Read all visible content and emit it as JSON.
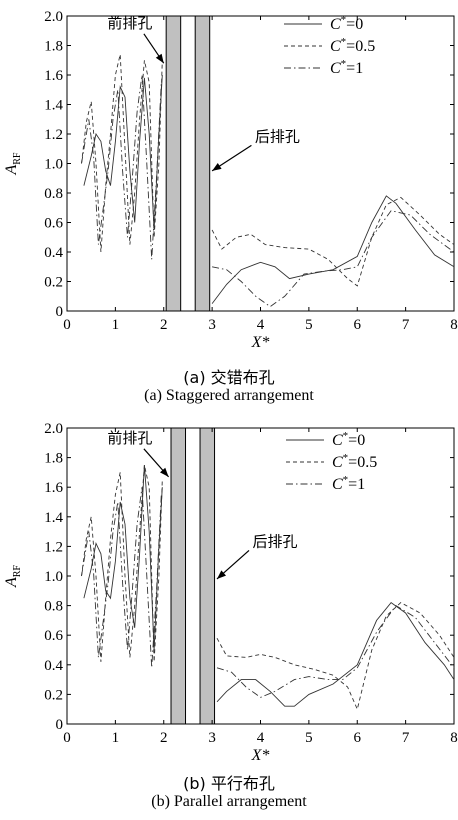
{
  "chart_data": [
    {
      "type": "line",
      "caption_cn": "(a) 交错布孔",
      "caption_en": "(a) Staggered arrangement",
      "xlabel": "X*",
      "ylabel_main": "A",
      "ylabel_sub": "RF",
      "xlim": [
        0,
        8
      ],
      "ylim": [
        0,
        2.0
      ],
      "xticks": [
        "0",
        "1",
        "2",
        "3",
        "4",
        "5",
        "6",
        "7",
        "8"
      ],
      "yticks": [
        "0",
        "0.2",
        "0.4",
        "0.6",
        "0.8",
        "1.0",
        "1.2",
        "1.4",
        "1.6",
        "1.8",
        "2.0"
      ],
      "grid": false,
      "legend_position": "top-right",
      "legend": [
        {
          "name_pre": "C",
          "name_sup": "*",
          "name_post": "=0",
          "style": "solid"
        },
        {
          "name_pre": "C",
          "name_sup": "*",
          "name_post": "=0.5",
          "style": "dashed"
        },
        {
          "name_pre": "C",
          "name_sup": "*",
          "name_post": "=1",
          "style": "dashdot"
        }
      ],
      "holes": [
        [
          2.05,
          2.35
        ],
        [
          2.65,
          2.95
        ]
      ],
      "annotations": [
        {
          "text": "前排孔",
          "text_x": 1.3,
          "text_y": 1.92,
          "arrow_to": [
            2.0,
            1.68
          ]
        },
        {
          "text": "后排孔",
          "text_x": 4.35,
          "text_y": 1.15,
          "arrow_to": [
            3.0,
            0.95
          ]
        }
      ],
      "series": [
        {
          "style": "solid",
          "points": [
            [
              0.35,
              0.85
            ],
            [
              0.5,
              1.05
            ],
            [
              0.6,
              1.2
            ],
            [
              0.7,
              1.15
            ],
            [
              0.8,
              0.95
            ],
            [
              0.9,
              0.85
            ],
            [
              1.0,
              1.15
            ],
            [
              1.1,
              1.52
            ],
            [
              1.2,
              1.45
            ],
            [
              1.3,
              0.95
            ],
            [
              1.4,
              0.6
            ],
            [
              1.5,
              1.15
            ],
            [
              1.6,
              1.58
            ],
            [
              1.7,
              1.2
            ],
            [
              1.8,
              0.55
            ],
            [
              1.9,
              1.2
            ],
            [
              1.97,
              1.6
            ]
          ]
        },
        {
          "style": "dashed",
          "points": [
            [
              0.3,
              1.0
            ],
            [
              0.4,
              1.28
            ],
            [
              0.5,
              1.42
            ],
            [
              0.6,
              1.0
            ],
            [
              0.7,
              0.4
            ],
            [
              0.8,
              0.85
            ],
            [
              0.9,
              1.2
            ],
            [
              1.0,
              1.6
            ],
            [
              1.1,
              1.74
            ],
            [
              1.2,
              1.1
            ],
            [
              1.3,
              0.45
            ],
            [
              1.4,
              0.8
            ],
            [
              1.5,
              1.3
            ],
            [
              1.6,
              1.7
            ],
            [
              1.7,
              1.55
            ],
            [
              1.8,
              0.5
            ],
            [
              1.9,
              1.0
            ],
            [
              1.97,
              1.7
            ]
          ]
        },
        {
          "style": "dashdot",
          "points": [
            [
              0.3,
              1.0
            ],
            [
              0.45,
              1.3
            ],
            [
              0.55,
              1.05
            ],
            [
              0.65,
              0.45
            ],
            [
              0.75,
              0.7
            ],
            [
              0.85,
              0.95
            ],
            [
              0.95,
              1.3
            ],
            [
              1.05,
              1.5
            ],
            [
              1.15,
              0.95
            ],
            [
              1.25,
              0.5
            ],
            [
              1.35,
              0.9
            ],
            [
              1.45,
              1.35
            ],
            [
              1.55,
              1.6
            ],
            [
              1.65,
              1.0
            ],
            [
              1.75,
              0.35
            ],
            [
              1.85,
              0.9
            ],
            [
              1.95,
              1.55
            ]
          ]
        },
        {
          "style": "solid",
          "points": [
            [
              3.0,
              0.05
            ],
            [
              3.3,
              0.18
            ],
            [
              3.6,
              0.28
            ],
            [
              4.0,
              0.33
            ],
            [
              4.3,
              0.3
            ],
            [
              4.6,
              0.22
            ],
            [
              5.0,
              0.25
            ],
            [
              5.5,
              0.28
            ],
            [
              6.0,
              0.37
            ],
            [
              6.3,
              0.6
            ],
            [
              6.6,
              0.78
            ],
            [
              6.8,
              0.73
            ],
            [
              7.2,
              0.55
            ],
            [
              7.6,
              0.38
            ],
            [
              8.0,
              0.3
            ]
          ]
        },
        {
          "style": "dashed",
          "points": [
            [
              3.0,
              0.55
            ],
            [
              3.2,
              0.42
            ],
            [
              3.5,
              0.5
            ],
            [
              3.8,
              0.52
            ],
            [
              4.1,
              0.45
            ],
            [
              4.5,
              0.43
            ],
            [
              5.0,
              0.42
            ],
            [
              5.4,
              0.35
            ],
            [
              5.8,
              0.22
            ],
            [
              6.0,
              0.17
            ],
            [
              6.3,
              0.5
            ],
            [
              6.6,
              0.72
            ],
            [
              6.9,
              0.77
            ],
            [
              7.3,
              0.65
            ],
            [
              7.7,
              0.52
            ],
            [
              8.0,
              0.45
            ]
          ]
        },
        {
          "style": "dashdot",
          "points": [
            [
              3.0,
              0.3
            ],
            [
              3.3,
              0.28
            ],
            [
              3.6,
              0.2
            ],
            [
              3.9,
              0.1
            ],
            [
              4.2,
              0.03
            ],
            [
              4.5,
              0.1
            ],
            [
              4.9,
              0.25
            ],
            [
              5.3,
              0.27
            ],
            [
              5.7,
              0.28
            ],
            [
              6.0,
              0.3
            ],
            [
              6.3,
              0.5
            ],
            [
              6.7,
              0.68
            ],
            [
              7.1,
              0.65
            ],
            [
              7.5,
              0.52
            ],
            [
              8.0,
              0.4
            ]
          ]
        }
      ]
    },
    {
      "type": "line",
      "caption_cn": "(b) 平行布孔",
      "caption_en": "(b) Parallel arrangement",
      "xlabel": "X*",
      "ylabel_main": "A",
      "ylabel_sub": "RF",
      "xlim": [
        0,
        8
      ],
      "ylim": [
        0,
        2.0
      ],
      "xticks": [
        "0",
        "1",
        "2",
        "3",
        "4",
        "5",
        "6",
        "7",
        "8"
      ],
      "yticks": [
        "0",
        "0.2",
        "0.4",
        "0.6",
        "0.8",
        "1.0",
        "1.2",
        "1.4",
        "1.6",
        "1.8",
        "2.0"
      ],
      "grid": false,
      "legend_position": "top-right",
      "legend": [
        {
          "name_pre": "C",
          "name_sup": "*",
          "name_post": "=0",
          "style": "solid"
        },
        {
          "name_pre": "C",
          "name_sup": "*",
          "name_post": "=0.5",
          "style": "dashed"
        },
        {
          "name_pre": "C",
          "name_sup": "*",
          "name_post": "=1",
          "style": "dashdot"
        }
      ],
      "holes": [
        [
          2.15,
          2.45
        ],
        [
          2.75,
          3.05
        ]
      ],
      "annotations": [
        {
          "text": "前排孔",
          "text_x": 1.3,
          "text_y": 1.9,
          "arrow_to": [
            2.1,
            1.67
          ]
        },
        {
          "text": "后排孔",
          "text_x": 4.3,
          "text_y": 1.2,
          "arrow_to": [
            3.1,
            0.98
          ]
        }
      ],
      "series": [
        {
          "style": "solid",
          "points": [
            [
              0.35,
              0.85
            ],
            [
              0.5,
              1.05
            ],
            [
              0.6,
              1.22
            ],
            [
              0.7,
              1.15
            ],
            [
              0.8,
              0.9
            ],
            [
              0.9,
              0.85
            ],
            [
              1.0,
              1.1
            ],
            [
              1.1,
              1.5
            ],
            [
              1.2,
              1.35
            ],
            [
              1.3,
              0.85
            ],
            [
              1.4,
              0.65
            ],
            [
              1.5,
              1.15
            ],
            [
              1.6,
              1.75
            ],
            [
              1.7,
              1.3
            ],
            [
              1.8,
              0.5
            ],
            [
              1.9,
              1.2
            ],
            [
              1.97,
              1.6
            ]
          ]
        },
        {
          "style": "dashed",
          "points": [
            [
              0.3,
              1.0
            ],
            [
              0.4,
              1.25
            ],
            [
              0.5,
              1.4
            ],
            [
              0.6,
              1.0
            ],
            [
              0.7,
              0.42
            ],
            [
              0.8,
              0.85
            ],
            [
              0.9,
              1.25
            ],
            [
              1.0,
              1.55
            ],
            [
              1.1,
              1.7
            ],
            [
              1.2,
              1.0
            ],
            [
              1.3,
              0.45
            ],
            [
              1.4,
              0.8
            ],
            [
              1.5,
              1.3
            ],
            [
              1.6,
              1.75
            ],
            [
              1.7,
              1.6
            ],
            [
              1.8,
              0.42
            ],
            [
              1.9,
              1.0
            ],
            [
              1.97,
              1.65
            ]
          ]
        },
        {
          "style": "dashdot",
          "points": [
            [
              0.3,
              1.0
            ],
            [
              0.45,
              1.3
            ],
            [
              0.55,
              1.02
            ],
            [
              0.65,
              0.45
            ],
            [
              0.75,
              0.7
            ],
            [
              0.85,
              0.95
            ],
            [
              0.95,
              1.3
            ],
            [
              1.05,
              1.5
            ],
            [
              1.15,
              0.95
            ],
            [
              1.25,
              0.5
            ],
            [
              1.35,
              0.9
            ],
            [
              1.45,
              1.35
            ],
            [
              1.55,
              1.6
            ],
            [
              1.65,
              1.0
            ],
            [
              1.75,
              0.38
            ],
            [
              1.85,
              0.9
            ],
            [
              1.95,
              1.55
            ]
          ]
        },
        {
          "style": "solid",
          "points": [
            [
              3.1,
              0.15
            ],
            [
              3.3,
              0.22
            ],
            [
              3.6,
              0.3
            ],
            [
              3.9,
              0.3
            ],
            [
              4.2,
              0.22
            ],
            [
              4.5,
              0.12
            ],
            [
              4.7,
              0.12
            ],
            [
              5.0,
              0.2
            ],
            [
              5.5,
              0.27
            ],
            [
              6.0,
              0.4
            ],
            [
              6.4,
              0.7
            ],
            [
              6.7,
              0.82
            ],
            [
              7.0,
              0.75
            ],
            [
              7.4,
              0.55
            ],
            [
              7.8,
              0.4
            ],
            [
              8.0,
              0.3
            ]
          ]
        },
        {
          "style": "dashed",
          "points": [
            [
              3.1,
              0.58
            ],
            [
              3.3,
              0.46
            ],
            [
              3.7,
              0.45
            ],
            [
              4.0,
              0.47
            ],
            [
              4.3,
              0.45
            ],
            [
              4.7,
              0.4
            ],
            [
              5.1,
              0.37
            ],
            [
              5.5,
              0.33
            ],
            [
              5.8,
              0.25
            ],
            [
              6.0,
              0.1
            ],
            [
              6.3,
              0.5
            ],
            [
              6.6,
              0.73
            ],
            [
              6.9,
              0.82
            ],
            [
              7.3,
              0.75
            ],
            [
              7.7,
              0.6
            ],
            [
              8.0,
              0.45
            ]
          ]
        },
        {
          "style": "dashdot",
          "points": [
            [
              3.1,
              0.38
            ],
            [
              3.4,
              0.35
            ],
            [
              3.7,
              0.25
            ],
            [
              4.0,
              0.18
            ],
            [
              4.3,
              0.22
            ],
            [
              4.7,
              0.3
            ],
            [
              5.0,
              0.32
            ],
            [
              5.4,
              0.3
            ],
            [
              5.7,
              0.3
            ],
            [
              6.0,
              0.38
            ],
            [
              6.4,
              0.62
            ],
            [
              6.8,
              0.8
            ],
            [
              7.2,
              0.72
            ],
            [
              7.6,
              0.55
            ],
            [
              8.0,
              0.38
            ]
          ]
        }
      ]
    }
  ]
}
